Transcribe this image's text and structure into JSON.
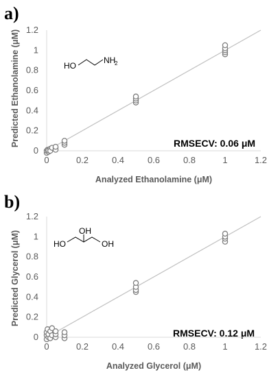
{
  "chart_data": [
    {
      "panel_label": "a)",
      "type": "scatter",
      "xlabel": "Analyzed Ethanolamine (μM)",
      "ylabel": "Predicted Ethanolamine (μM)",
      "xlim": [
        0,
        1.2
      ],
      "ylim": [
        0,
        1.2
      ],
      "x_ticks": [
        "0",
        "0.2",
        "0.4",
        "0.6",
        "0.8",
        "1",
        "1.2"
      ],
      "y_ticks": [
        "0",
        "0.2",
        "0.4",
        "0.6",
        "0.8",
        "1",
        "1.2"
      ],
      "reference_line": "y = x",
      "annotation": "RMSECV:  0.06 μM",
      "structure": {
        "name": "ethanolamine",
        "labels": [
          "HO",
          "NH",
          "2"
        ]
      },
      "points": [
        {
          "x": 0.0,
          "y": -0.02
        },
        {
          "x": 0.0,
          "y": 0.0
        },
        {
          "x": 0.005,
          "y": 0.01
        },
        {
          "x": 0.01,
          "y": -0.01
        },
        {
          "x": 0.01,
          "y": 0.005
        },
        {
          "x": 0.02,
          "y": 0.02
        },
        {
          "x": 0.02,
          "y": 0.0
        },
        {
          "x": 0.03,
          "y": 0.03
        },
        {
          "x": 0.05,
          "y": 0.03
        },
        {
          "x": 0.05,
          "y": 0.01
        },
        {
          "x": 0.05,
          "y": 0.04
        },
        {
          "x": 0.1,
          "y": 0.06
        },
        {
          "x": 0.1,
          "y": 0.08
        },
        {
          "x": 0.1,
          "y": 0.1
        },
        {
          "x": 0.5,
          "y": 0.48
        },
        {
          "x": 0.5,
          "y": 0.5
        },
        {
          "x": 0.5,
          "y": 0.52
        },
        {
          "x": 0.5,
          "y": 0.54
        },
        {
          "x": 1.0,
          "y": 0.96
        },
        {
          "x": 1.0,
          "y": 0.98
        },
        {
          "x": 1.0,
          "y": 1.0
        },
        {
          "x": 1.0,
          "y": 1.02
        },
        {
          "x": 1.0,
          "y": 1.05
        }
      ]
    },
    {
      "panel_label": "b)",
      "type": "scatter",
      "xlabel": "Analyzed Glycerol (μM)",
      "ylabel": "Predicted Glycerol (μM)",
      "xlim": [
        0,
        1.2
      ],
      "ylim": [
        0,
        1.2
      ],
      "x_ticks": [
        "0",
        "0.2",
        "0.4",
        "0.6",
        "0.8",
        "1",
        "1.2"
      ],
      "y_ticks": [
        "0",
        "0.2",
        "0.4",
        "0.6",
        "0.8",
        "1",
        "1.2"
      ],
      "reference_line": "y = x",
      "annotation": "RMSECV:  0.12 μM",
      "structure": {
        "name": "glycerol",
        "labels": [
          "HO",
          "OH",
          "OH"
        ]
      },
      "points": [
        {
          "x": 0.0,
          "y": -0.02
        },
        {
          "x": 0.0,
          "y": 0.02
        },
        {
          "x": 0.0,
          "y": 0.05
        },
        {
          "x": 0.005,
          "y": 0.08
        },
        {
          "x": 0.01,
          "y": 0.0
        },
        {
          "x": 0.01,
          "y": 0.03
        },
        {
          "x": 0.02,
          "y": -0.01
        },
        {
          "x": 0.02,
          "y": 0.06
        },
        {
          "x": 0.03,
          "y": 0.02
        },
        {
          "x": 0.03,
          "y": 0.09
        },
        {
          "x": 0.05,
          "y": 0.0
        },
        {
          "x": 0.05,
          "y": 0.03
        },
        {
          "x": 0.05,
          "y": 0.06
        },
        {
          "x": 0.1,
          "y": -0.01
        },
        {
          "x": 0.1,
          "y": 0.02
        },
        {
          "x": 0.1,
          "y": 0.05
        },
        {
          "x": 0.5,
          "y": 0.45
        },
        {
          "x": 0.5,
          "y": 0.47
        },
        {
          "x": 0.5,
          "y": 0.5
        },
        {
          "x": 0.5,
          "y": 0.54
        },
        {
          "x": 1.0,
          "y": 0.95
        },
        {
          "x": 1.0,
          "y": 0.98
        },
        {
          "x": 1.0,
          "y": 1.0
        },
        {
          "x": 1.0,
          "y": 1.03
        }
      ]
    }
  ],
  "colors": {
    "marker_stroke": "#7f7f7f",
    "reference_line": "#bfbfbf",
    "axis": "#d9d9d9",
    "text": "#595959"
  }
}
